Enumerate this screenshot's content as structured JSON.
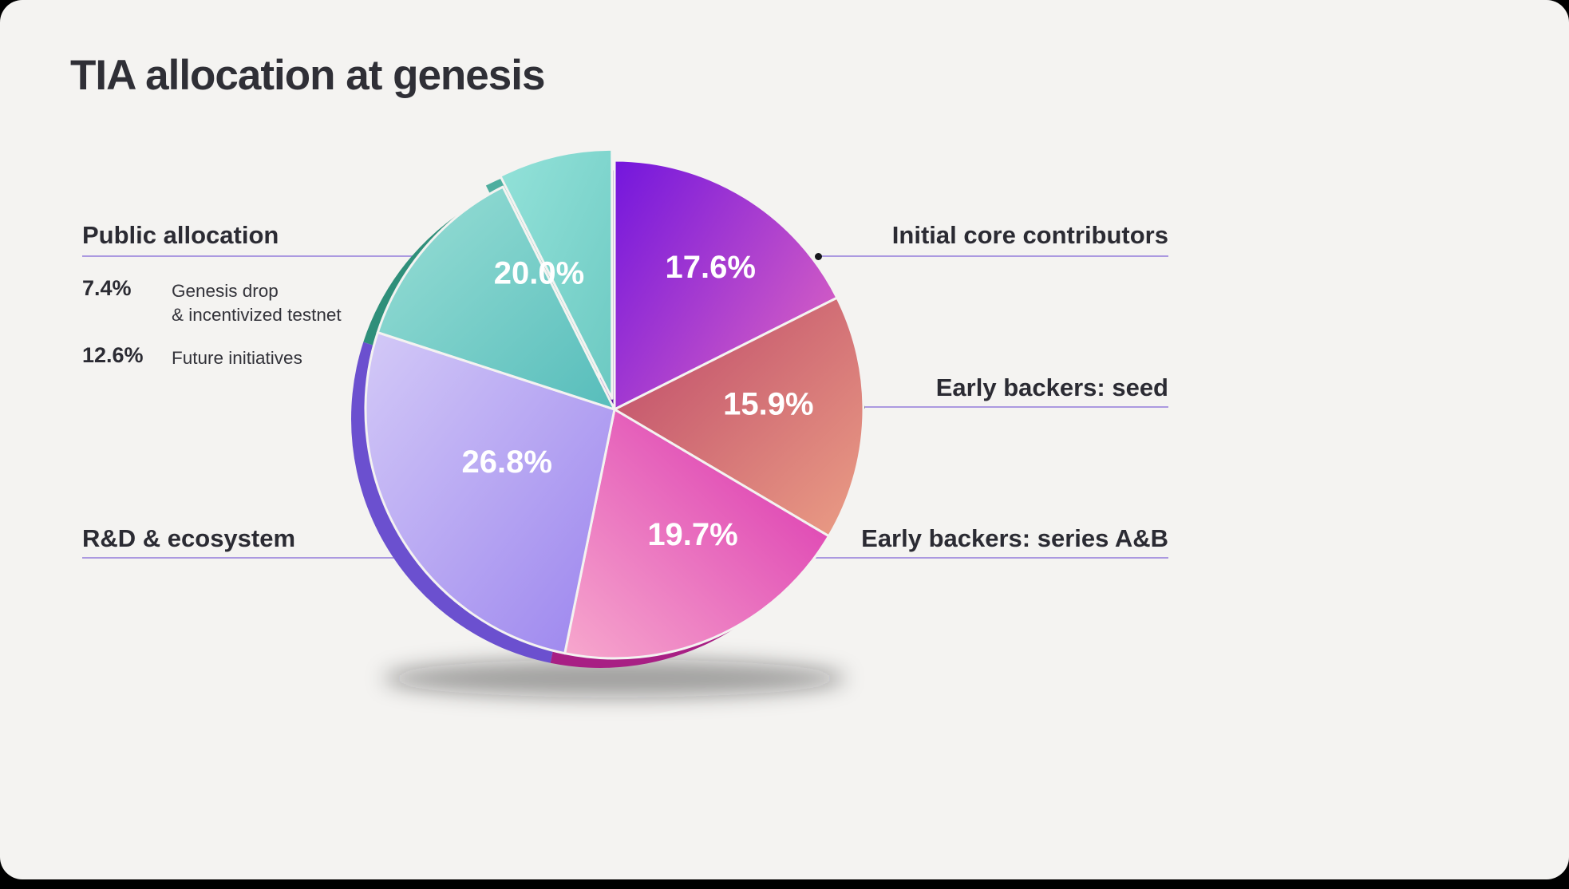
{
  "page": {
    "title": "TIA allocation at genesis",
    "background": "#f4f3f1",
    "accent_line_color": "#ab99e0",
    "dot_color": "#17171c"
  },
  "chart_data": {
    "type": "pie",
    "title": "TIA allocation at genesis",
    "unit": "percent",
    "start_angle_deg": 0,
    "direction": "clockwise",
    "legend_position": "none",
    "slices": [
      {
        "label": "Initial core contributors",
        "value": 17.6,
        "gradient": [
          "#7316dd",
          "#d55ec4"
        ],
        "dir": [
          0,
          0,
          1,
          0.7
        ],
        "rim": "#55109e"
      },
      {
        "label": "Early backers: seed",
        "value": 15.9,
        "gradient": [
          "#bc4668",
          "#eb9e85"
        ],
        "dir": [
          0,
          0,
          1,
          1
        ],
        "rim": "#98344f"
      },
      {
        "label": "Early backers: series A&B",
        "value": 19.7,
        "gradient": [
          "#d92fae",
          "#f7a8cd"
        ],
        "dir": [
          1,
          0,
          0,
          1
        ],
        "rim": "#a81f84"
      },
      {
        "label": "R&D & ecosystem",
        "value": 26.8,
        "gradient": [
          "#d3c9f7",
          "#9b84ee"
        ],
        "dir": [
          0,
          0,
          1,
          1
        ],
        "rim": "#6b50cf"
      },
      {
        "label": "Public allocation: Future initiatives",
        "value": 12.6,
        "gradient": [
          "#9adfd6",
          "#57bdbb"
        ],
        "dir": [
          0,
          0,
          1,
          1
        ],
        "rim": "#2f8f7a"
      },
      {
        "label": "Public allocation: Genesis drop & incentivized testnet",
        "value": 7.4,
        "gradient": [
          "#93e2d9",
          "#6cc9c2"
        ],
        "dir": [
          0,
          0,
          1,
          1
        ],
        "rim": "#4fae9f",
        "explode": 14
      }
    ],
    "groups": [
      {
        "label": "Public allocation",
        "value": 20.0,
        "display": "20.0%",
        "children": [
          "Genesis drop & incentivized testnet",
          "Future initiatives"
        ]
      }
    ],
    "slice_value_labels": [
      {
        "text": "17.6%",
        "angle": 34,
        "r": 215
      },
      {
        "text": "15.9%",
        "angle": 88,
        "r": 193
      },
      {
        "text": "19.7%",
        "angle": 148,
        "r": 185
      },
      {
        "text": "26.8%",
        "angle": 244,
        "r": 150
      },
      {
        "text": "20.0%",
        "angle": 331,
        "r": 195
      }
    ]
  },
  "callouts": {
    "left": {
      "public": {
        "heading": "Public allocation",
        "items": [
          {
            "pct": "7.4%",
            "line1": "Genesis drop",
            "line2": "& incentivized testnet"
          },
          {
            "pct": "12.6%",
            "line1": "Future initiatives",
            "line2": ""
          }
        ]
      },
      "rnd": {
        "heading": "R&D & ecosystem"
      }
    },
    "right": [
      {
        "heading": "Initial core contributors"
      },
      {
        "heading": "Early backers: seed"
      },
      {
        "heading": "Early backers: series A&B"
      }
    ]
  }
}
